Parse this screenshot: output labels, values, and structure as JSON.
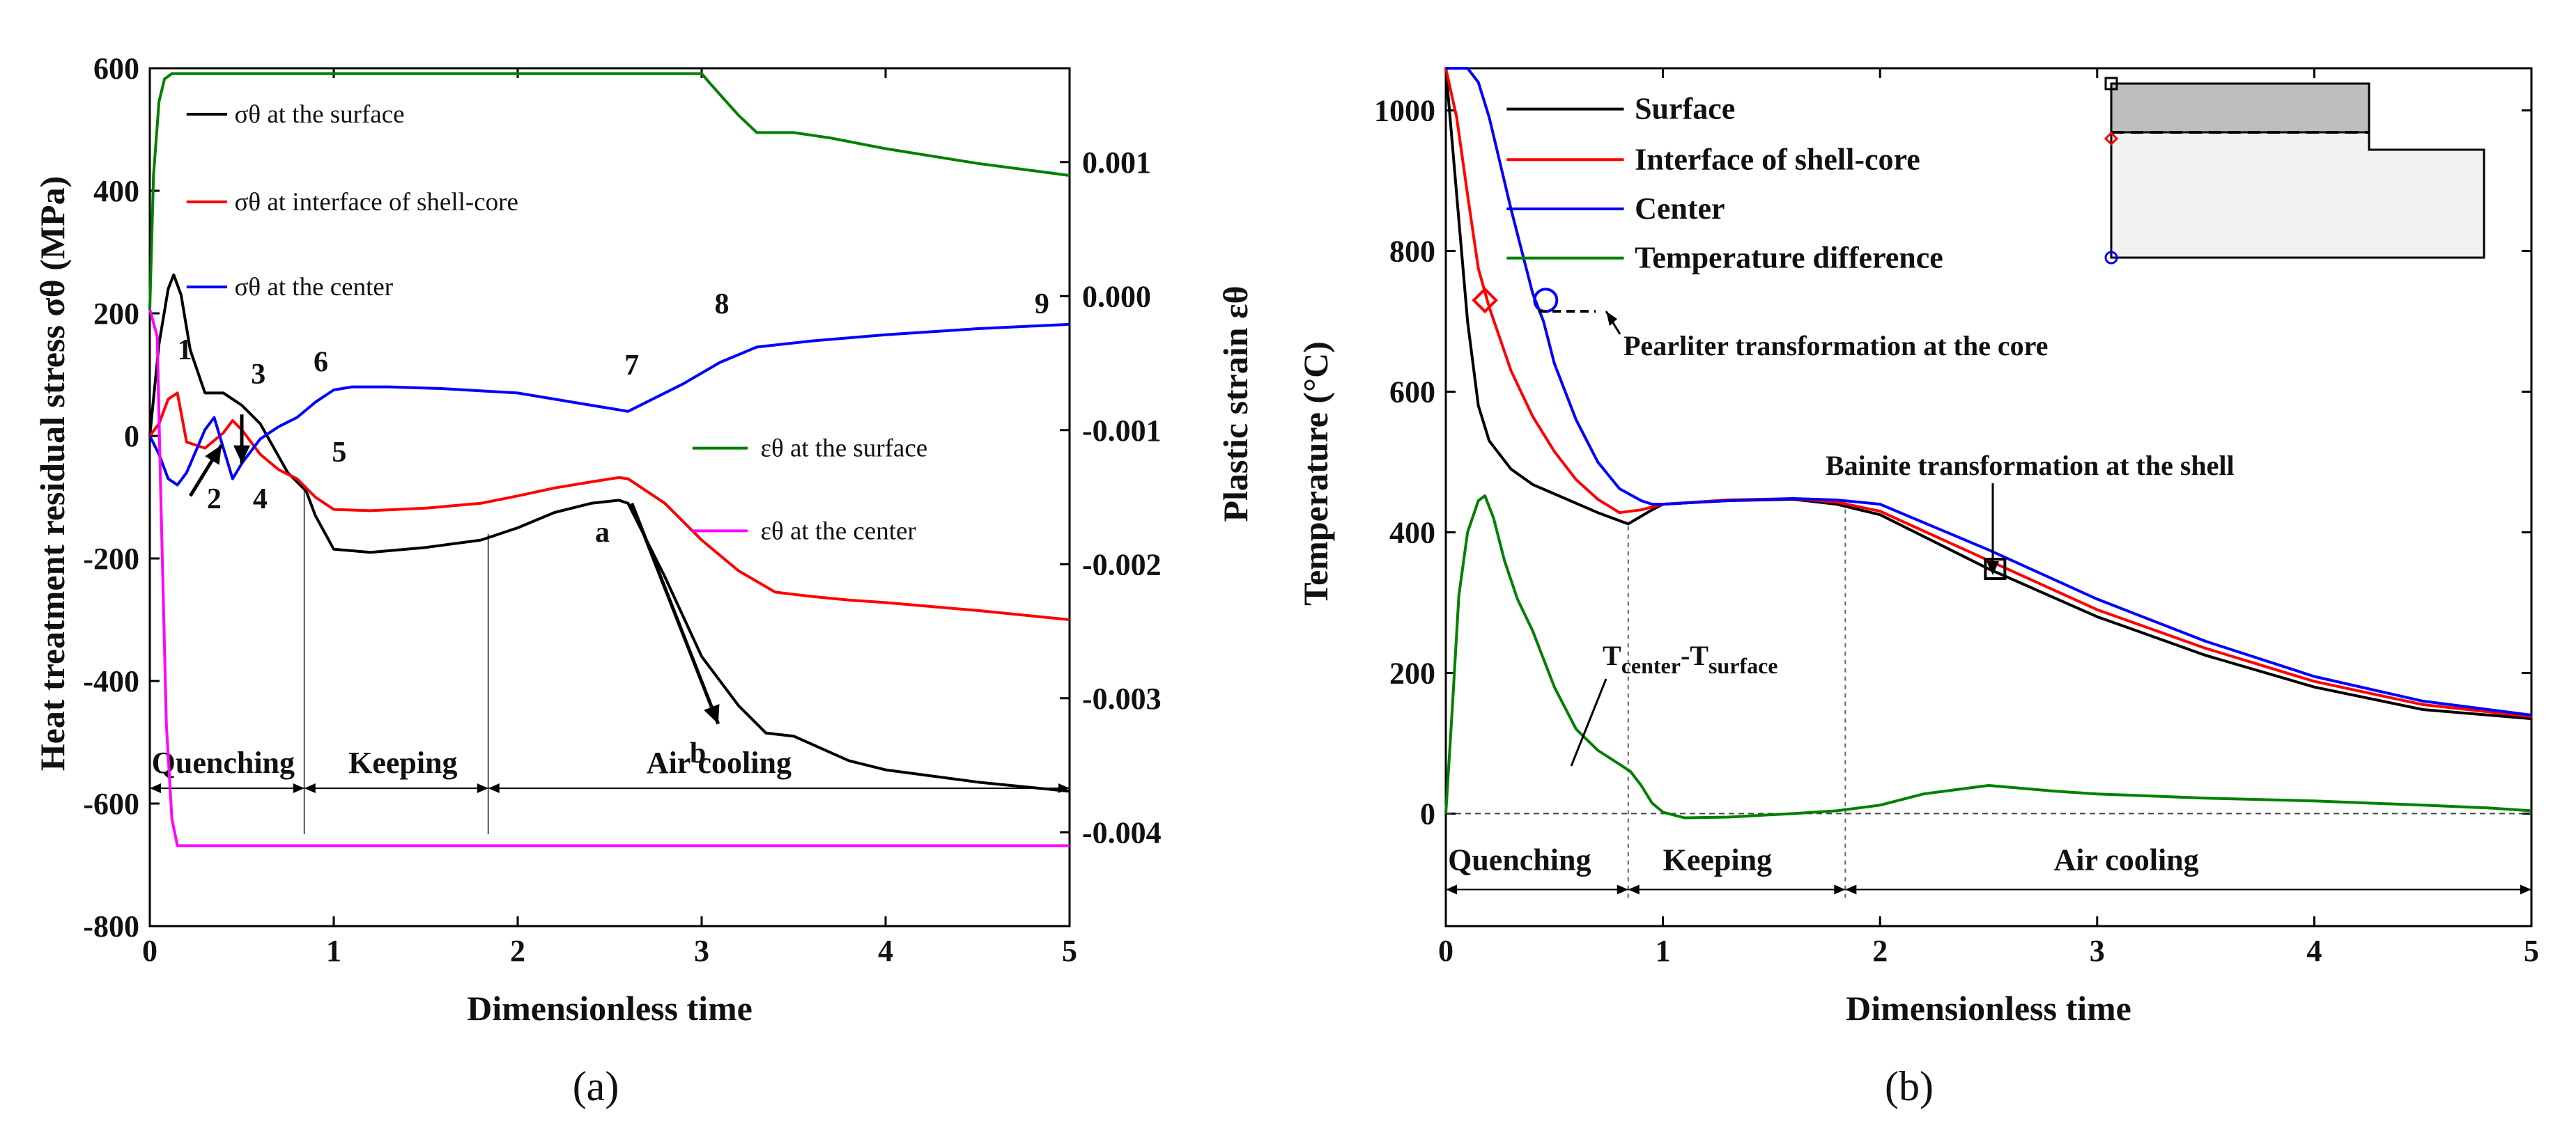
{
  "chart_data": [
    {
      "type": "line",
      "panel": "a",
      "caption": "(a)",
      "xlabel": "Dimensionless time",
      "ylabel": "Heat treatment residual stress σθ (MPa)",
      "ylabel_right": "Plastic strain εθ",
      "xlim": [
        0,
        5
      ],
      "ylim": [
        -800,
        600
      ],
      "ylim_right": [
        -0.0047,
        0.0017
      ],
      "x_ticks": [
        "0",
        "1",
        "2",
        "3",
        "4",
        "5"
      ],
      "y_ticks": [
        "600",
        "400",
        "200",
        "0",
        "-200",
        "-400",
        "-600",
        "-800"
      ],
      "y_ticks_right": [
        "0.001",
        "0.000",
        "-0.001",
        "-0.002",
        "-0.003",
        "-0.004"
      ],
      "grid": false,
      "legend_position": "left",
      "legend": [
        "σθ at the surface",
        "σθ at interface of shell-core",
        "σθ at the center",
        "εθ at the surface",
        "εθ at the center"
      ],
      "series": [
        {
          "name": "σθ at the surface",
          "color": "#000000",
          "axis": "left",
          "x": [
            0,
            0.05,
            0.1,
            0.13,
            0.17,
            0.22,
            0.3,
            0.4,
            0.45,
            0.5,
            0.6,
            0.75,
            0.85,
            0.9,
            1.0,
            1.2,
            1.5,
            1.8,
            2.0,
            2.2,
            2.4,
            2.55,
            2.6,
            2.8,
            3.0,
            3.2,
            3.35,
            3.5,
            3.8,
            4.0,
            4.5,
            5.0
          ],
          "y": [
            0,
            150,
            240,
            263,
            230,
            140,
            70,
            70,
            60,
            50,
            20,
            -60,
            -90,
            -130,
            -185,
            -190,
            -182,
            -170,
            -150,
            -125,
            -110,
            -105,
            -110,
            -230,
            -360,
            -440,
            -485,
            -490,
            -530,
            -545,
            -565,
            -580
          ]
        },
        {
          "name": "σθ at interface of shell-core",
          "color": "#ff0000",
          "axis": "left",
          "x": [
            0,
            0.05,
            0.1,
            0.15,
            0.2,
            0.3,
            0.4,
            0.45,
            0.5,
            0.6,
            0.7,
            0.8,
            0.9,
            1.0,
            1.2,
            1.5,
            1.8,
            2.0,
            2.2,
            2.4,
            2.55,
            2.6,
            2.8,
            3.0,
            3.2,
            3.4,
            3.6,
            3.8,
            4.0,
            4.5,
            5.0
          ],
          "y": [
            0,
            20,
            60,
            70,
            -10,
            -20,
            5,
            25,
            10,
            -30,
            -55,
            -70,
            -100,
            -120,
            -122,
            -118,
            -110,
            -98,
            -85,
            -75,
            -68,
            -70,
            -110,
            -170,
            -220,
            -255,
            -262,
            -268,
            -272,
            -285,
            -300
          ]
        },
        {
          "name": "σθ at the center",
          "color": "#0000ff",
          "axis": "left",
          "x": [
            0,
            0.05,
            0.1,
            0.15,
            0.2,
            0.3,
            0.35,
            0.45,
            0.5,
            0.6,
            0.7,
            0.8,
            0.9,
            1.0,
            1.1,
            1.3,
            1.6,
            2.0,
            2.3,
            2.5,
            2.6,
            2.7,
            2.9,
            3.1,
            3.3,
            3.6,
            4.0,
            4.5,
            5.0
          ],
          "y": [
            0,
            -30,
            -70,
            -80,
            -60,
            10,
            30,
            -70,
            -45,
            -5,
            15,
            30,
            55,
            75,
            80,
            80,
            77,
            70,
            55,
            45,
            40,
            55,
            85,
            120,
            145,
            155,
            165,
            175,
            182
          ]
        },
        {
          "name": "εθ at the surface",
          "color": "#008000",
          "axis": "right",
          "x": [
            0,
            0.02,
            0.05,
            0.08,
            0.12,
            0.2,
            0.5,
            1.0,
            2.0,
            3.0,
            3.05,
            3.2,
            3.3,
            3.5,
            3.7,
            4.0,
            4.5,
            5.0
          ],
          "y": [
            -0.0001,
            0.0009,
            0.00145,
            0.00162,
            0.00166,
            0.00166,
            0.00166,
            0.00166,
            0.00166,
            0.00166,
            0.00158,
            0.00135,
            0.00122,
            0.00122,
            0.00118,
            0.0011,
            0.00099,
            0.0009
          ]
        },
        {
          "name": "εθ at the center",
          "color": "#ff00ff",
          "axis": "right",
          "x": [
            0,
            0.04,
            0.06,
            0.09,
            0.12,
            0.15,
            0.2,
            1.0,
            2.0,
            3.0,
            4.0,
            5.0
          ],
          "y": [
            -0.0001,
            -0.0003,
            -0.0015,
            -0.0032,
            -0.0039,
            -0.0041,
            -0.0041,
            -0.0041,
            -0.0041,
            -0.0041,
            -0.0041,
            -0.0041
          ]
        }
      ],
      "annotations": {
        "points": [
          {
            "label": "1",
            "x": 0.19,
            "y": 125
          },
          {
            "label": "2",
            "x": 0.35,
            "y": -118
          },
          {
            "label": "3",
            "x": 0.59,
            "y": 85
          },
          {
            "label": "4",
            "x": 0.6,
            "y": -118
          },
          {
            "label": "5",
            "x": 1.03,
            "y": -42
          },
          {
            "label": "6",
            "x": 0.93,
            "y": 105
          },
          {
            "label": "7",
            "x": 2.62,
            "y": 100
          },
          {
            "label": "8",
            "x": 3.11,
            "y": 200
          },
          {
            "label": "9",
            "x": 4.85,
            "y": 200
          },
          {
            "label": "a",
            "x": 2.46,
            "y": -173
          },
          {
            "label": "b",
            "x": 2.98,
            "y": -533
          }
        ],
        "phases": [
          "Quenching",
          "Keeping",
          "Air cooling"
        ],
        "phase_boundaries": [
          0.84,
          1.84
        ]
      }
    },
    {
      "type": "line",
      "panel": "b",
      "caption": "(b)",
      "xlabel": "Dimensionless time",
      "ylabel": "Temperature (°C)",
      "xlim": [
        0,
        5
      ],
      "ylim": [
        -160,
        1060
      ],
      "x_ticks": [
        "0",
        "1",
        "2",
        "3",
        "4",
        "5"
      ],
      "y_ticks": [
        "1000",
        "800",
        "600",
        "400",
        "200",
        "0"
      ],
      "grid": false,
      "legend_position": "top-left",
      "legend": [
        "Surface",
        "Interface of shell-core",
        "Center",
        "Temperature difference"
      ],
      "series": [
        {
          "name": "Surface",
          "color": "#000000",
          "x": [
            0,
            0.05,
            0.1,
            0.15,
            0.2,
            0.3,
            0.4,
            0.55,
            0.7,
            0.84,
            0.95,
            1.0,
            1.3,
            1.6,
            1.8,
            2.0,
            2.5,
            3.0,
            3.5,
            4.0,
            4.5,
            5.0
          ],
          "y": [
            1060,
            880,
            700,
            580,
            530,
            490,
            468,
            448,
            428,
            412,
            432,
            440,
            445,
            447,
            440,
            425,
            348,
            280,
            225,
            180,
            148,
            135
          ]
        },
        {
          "name": "Interface of shell-core",
          "color": "#ff0000",
          "x": [
            0,
            0.05,
            0.1,
            0.15,
            0.2,
            0.3,
            0.4,
            0.5,
            0.6,
            0.7,
            0.8,
            0.9,
            1.0,
            1.3,
            1.6,
            1.8,
            2.0,
            2.5,
            3.0,
            3.5,
            4.0,
            4.5,
            5.0
          ],
          "y": [
            1060,
            990,
            880,
            775,
            720,
            630,
            565,
            515,
            475,
            447,
            428,
            432,
            440,
            446,
            448,
            443,
            430,
            360,
            290,
            235,
            188,
            155,
            138
          ]
        },
        {
          "name": "Center",
          "color": "#0000ff",
          "x": [
            0,
            0.05,
            0.1,
            0.15,
            0.2,
            0.3,
            0.4,
            0.45,
            0.5,
            0.6,
            0.7,
            0.8,
            0.9,
            0.95,
            1.0,
            1.3,
            1.6,
            1.8,
            2.0,
            2.5,
            3.0,
            3.5,
            4.0,
            4.5,
            5.0
          ],
          "y": [
            1060,
            1060,
            1060,
            1040,
            990,
            860,
            740,
            700,
            640,
            560,
            500,
            462,
            445,
            440,
            440,
            445,
            448,
            446,
            440,
            375,
            305,
            245,
            195,
            160,
            140
          ]
        },
        {
          "name": "Temperature difference",
          "color": "#008000",
          "x": [
            0,
            0.03,
            0.06,
            0.1,
            0.15,
            0.18,
            0.22,
            0.27,
            0.33,
            0.4,
            0.5,
            0.6,
            0.7,
            0.8,
            0.85,
            0.9,
            0.95,
            1.0,
            1.1,
            1.3,
            1.6,
            1.8,
            2.0,
            2.2,
            2.5,
            2.8,
            3.0,
            3.5,
            4.0,
            4.5,
            4.8,
            5.0
          ],
          "y": [
            0,
            150,
            310,
            400,
            445,
            452,
            420,
            360,
            305,
            260,
            180,
            120,
            90,
            70,
            60,
            40,
            15,
            2,
            -6,
            -5,
            0,
            4,
            12,
            28,
            40,
            32,
            28,
            22,
            18,
            12,
            8,
            4
          ]
        }
      ],
      "annotations": {
        "pearlite_label": "Pearliter transformation at the core",
        "bainite_label": "Bainite transformation at the shell",
        "diff_label_main": "T",
        "diff_label_sub1": "center",
        "diff_label_sep": "-T",
        "diff_label_sub2": "surface",
        "phases": [
          "Quenching",
          "Keeping",
          "Air cooling"
        ],
        "phase_boundaries": [
          0.84,
          1.84
        ],
        "markers": [
          {
            "shape": "diamond",
            "color": "#ff0000",
            "x": 0.18,
            "y": 730
          },
          {
            "shape": "circle",
            "color": "#0000ff",
            "x": 0.46,
            "y": 730
          },
          {
            "shape": "square",
            "color": "#000000",
            "x": 2.53,
            "y": 348
          }
        ]
      }
    }
  ]
}
